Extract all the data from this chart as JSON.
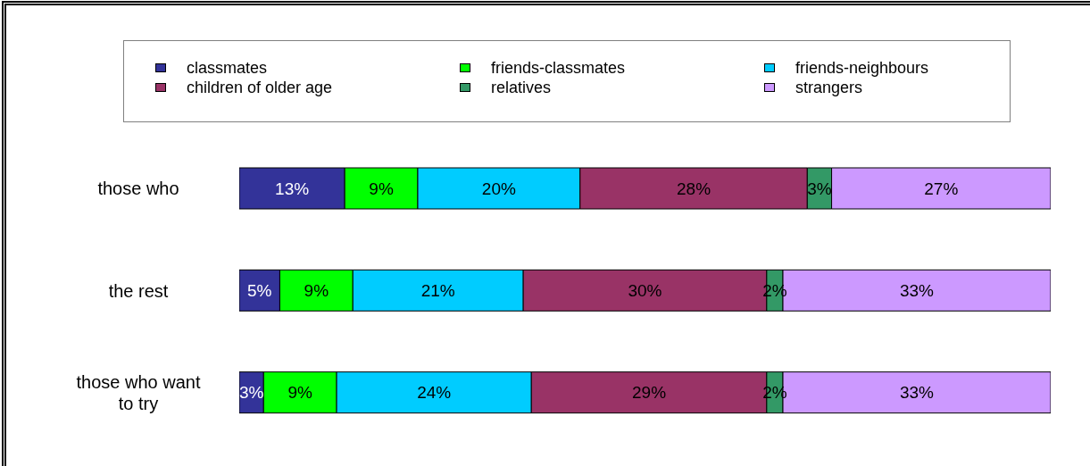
{
  "chart_data": {
    "type": "bar",
    "orientation": "horizontal",
    "stacked": true,
    "categories": [
      "those who",
      "the rest",
      "those who want to try"
    ],
    "series": [
      {
        "name": "classmates",
        "color": "#333399",
        "values": [
          13,
          5,
          3
        ],
        "value_labels": [
          "13%",
          "5%",
          "3%"
        ]
      },
      {
        "name": "friends-classmates",
        "color": "#00ff00",
        "values": [
          9,
          9,
          9
        ],
        "value_labels": [
          "9%",
          "9%",
          "9%"
        ]
      },
      {
        "name": "friends-neighbours",
        "color": "#00ccff",
        "values": [
          20,
          21,
          24
        ],
        "value_labels": [
          "20%",
          "21%",
          "24%"
        ]
      },
      {
        "name": "children of older age",
        "color": "#993366",
        "values": [
          28,
          30,
          29
        ],
        "value_labels": [
          "28%",
          "30%",
          "29%"
        ]
      },
      {
        "name": "relatives",
        "color": "#339966",
        "values": [
          3,
          2,
          2
        ],
        "value_labels": [
          "3%",
          "2%",
          "2%"
        ]
      },
      {
        "name": "strangers",
        "color": "#cc99ff",
        "values": [
          27,
          33,
          33
        ],
        "value_labels": [
          "27%",
          "33%",
          "33%"
        ]
      }
    ],
    "xlim": [
      0,
      100
    ],
    "tick_labels": "y",
    "legend": "top"
  }
}
